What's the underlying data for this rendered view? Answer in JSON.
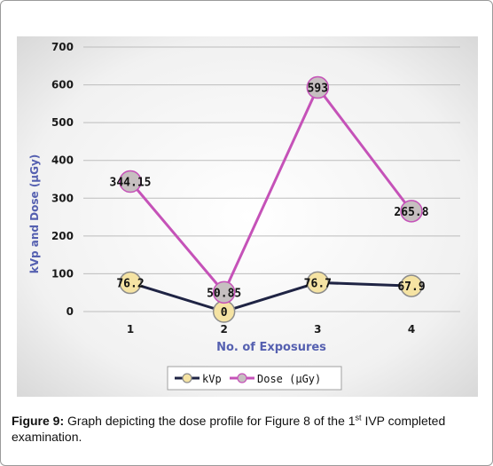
{
  "chart_data": {
    "type": "line",
    "categories": [
      "1",
      "2",
      "3",
      "4"
    ],
    "xlabel": "No. of Exposures",
    "ylabel": "kVp and Dose (µGy)",
    "ylim": [
      0,
      700
    ],
    "yticks": [
      0,
      100,
      200,
      300,
      400,
      500,
      600,
      700
    ],
    "grid": true,
    "legend_position": "bottom",
    "series": [
      {
        "name": "kVp",
        "values": [
          76.2,
          0,
          76.7,
          67.9
        ],
        "labels": [
          "76.2",
          "0",
          "76.7",
          "67.9"
        ],
        "line_color": "#1f2444",
        "marker_fill": "#f5e3a3",
        "marker_stroke": "#8c8c8c"
      },
      {
        "name": "Dose (µGy)",
        "values": [
          344.15,
          50.85,
          593,
          265.8
        ],
        "labels": [
          "344.15",
          "50.85",
          "593",
          "265.8"
        ],
        "line_color": "#c552b8",
        "marker_fill": "#c6bfc0",
        "marker_stroke": "#c552b8"
      }
    ],
    "colors": {
      "axis_text": "#1a1a1a",
      "xlabel": "#5560b0",
      "ylabel": "#5560b0",
      "grid": "#bdbdbd"
    }
  },
  "caption": {
    "label": "Figure 9:",
    "text_before_sup": " Graph depicting the dose profile for Figure 8 of the 1",
    "sup": "st",
    "text_after_sup": " IVP completed examination."
  }
}
